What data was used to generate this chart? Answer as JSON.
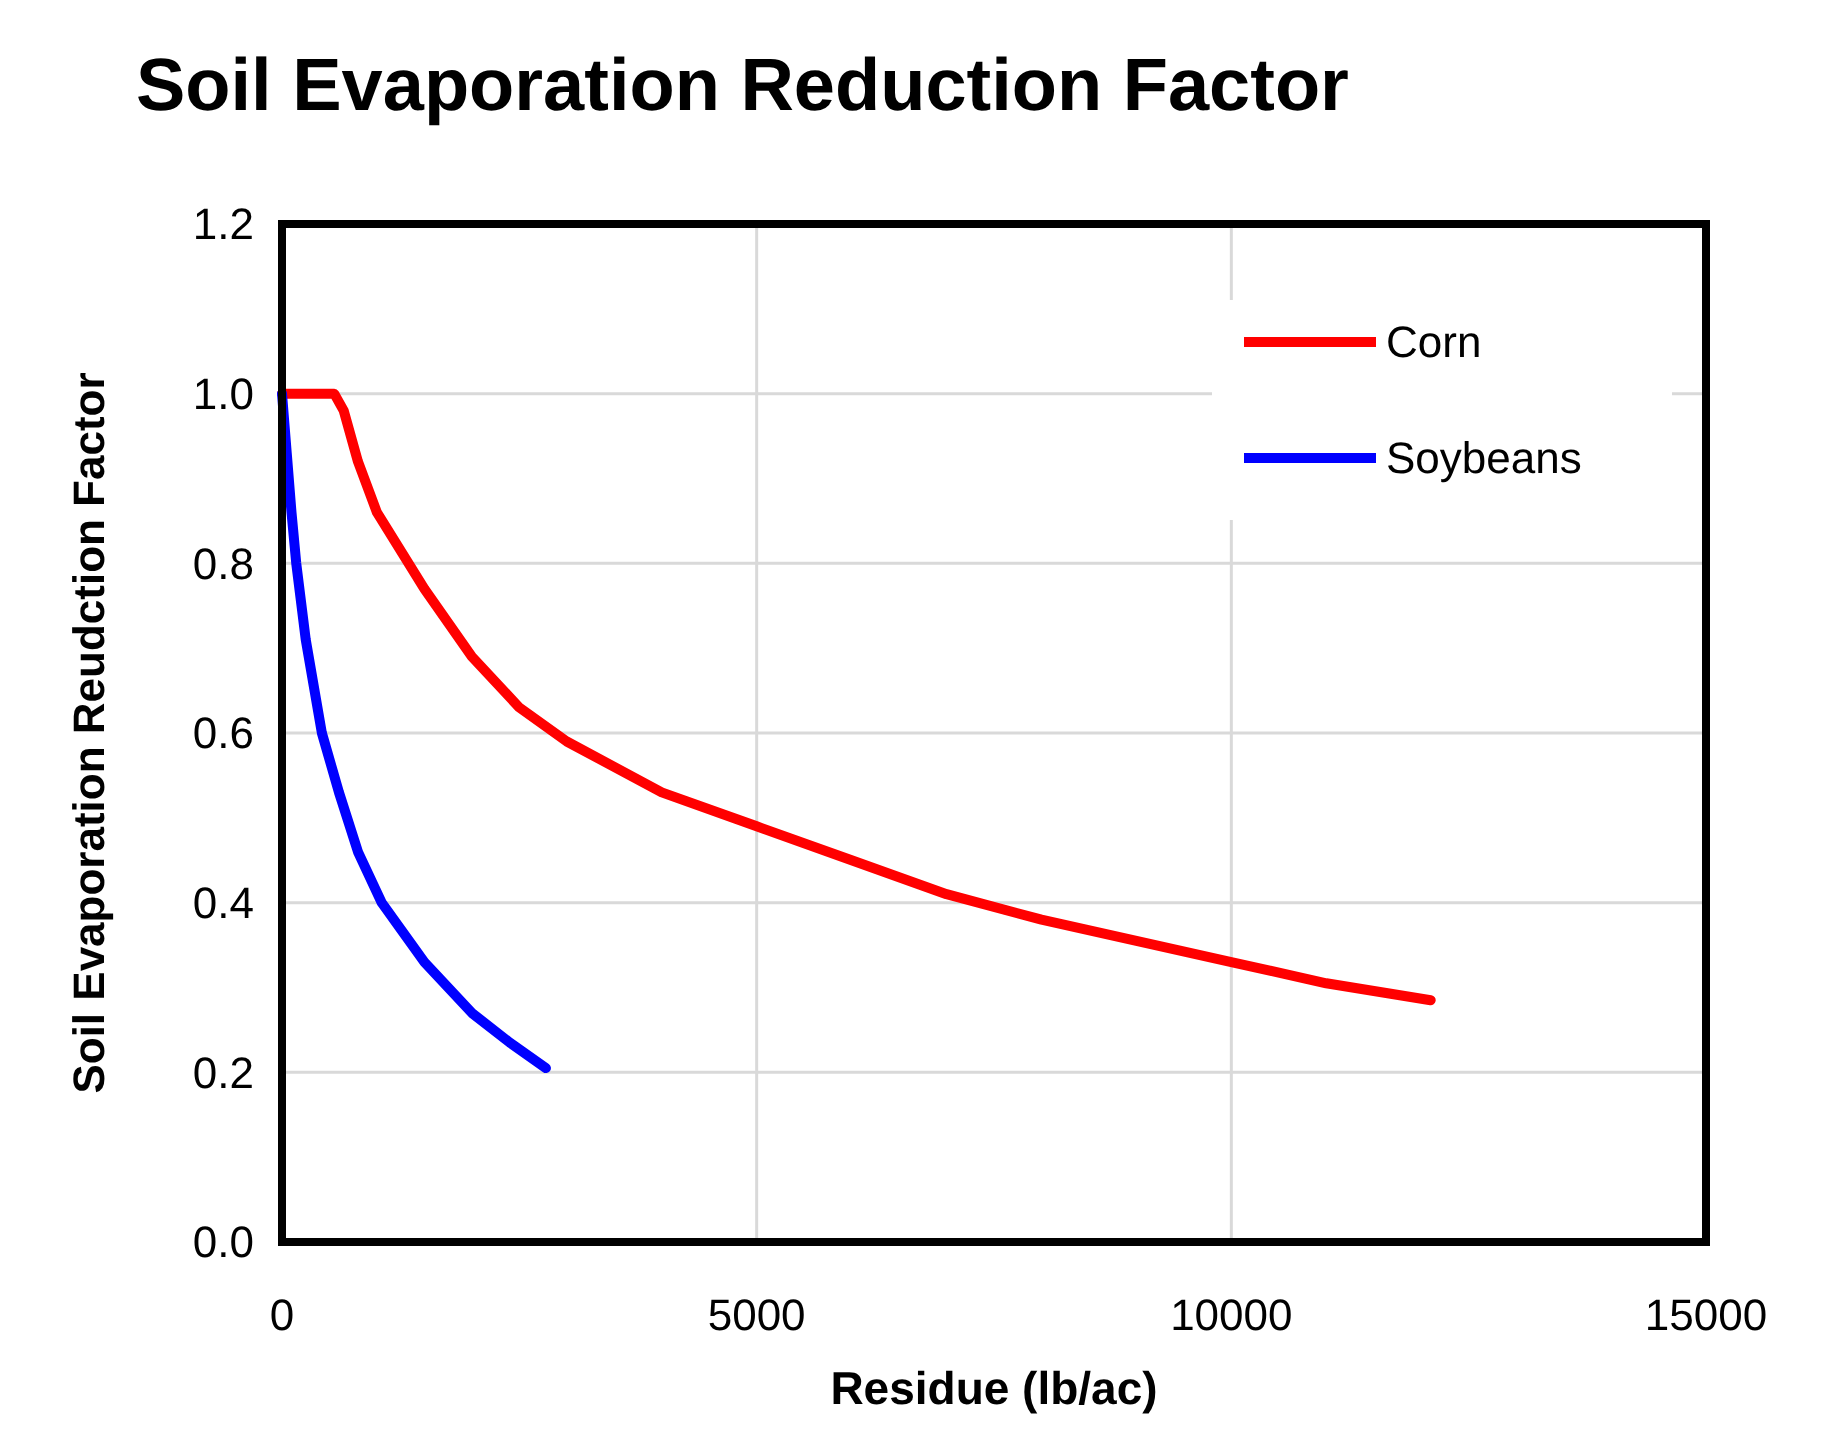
{
  "chart_data": {
    "type": "line",
    "title": "Soil Evaporation Reduction Factor",
    "xlabel": "Residue (lb/ac)",
    "ylabel": "Soil Evaporation Reudction Factor",
    "xlim": [
      0,
      15000
    ],
    "xticks": [
      0,
      5000,
      10000,
      15000
    ],
    "ylim": [
      0,
      1.2
    ],
    "yticks": [
      {
        "value": 0,
        "label": "0.0"
      },
      {
        "value": 0.2,
        "label": "0.2"
      },
      {
        "value": 0.4,
        "label": "0.4"
      },
      {
        "value": 0.6,
        "label": "0.6"
      },
      {
        "value": 0.8,
        "label": "0.8"
      },
      {
        "value": 1,
        "label": "1.0"
      },
      {
        "value": 1.2,
        "label": "1.2"
      }
    ],
    "grid": true,
    "legend": "top right",
    "marker": "none",
    "line_style": "solid",
    "series": [
      {
        "name": "Corn",
        "color": "#ff0000",
        "x": [
          0,
          300,
          550,
          650,
          800,
          1000,
          1500,
          2000,
          2500,
          3000,
          4000,
          5000,
          6000,
          7000,
          8000,
          9000,
          10000,
          11000,
          12100
        ],
        "values": [
          1.0,
          1.0,
          1.0,
          0.98,
          0.92,
          0.86,
          0.77,
          0.69,
          0.63,
          0.59,
          0.53,
          0.49,
          0.45,
          0.41,
          0.38,
          0.355,
          0.33,
          0.305,
          0.285
        ]
      },
      {
        "name": "Soybeans",
        "color": "#0000ff",
        "x": [
          0,
          50,
          100,
          150,
          250,
          420,
          600,
          800,
          1050,
          1500,
          2000,
          2400,
          2780
        ],
        "values": [
          1.0,
          0.93,
          0.86,
          0.8,
          0.71,
          0.6,
          0.53,
          0.46,
          0.4,
          0.33,
          0.27,
          0.235,
          0.205
        ]
      }
    ]
  }
}
